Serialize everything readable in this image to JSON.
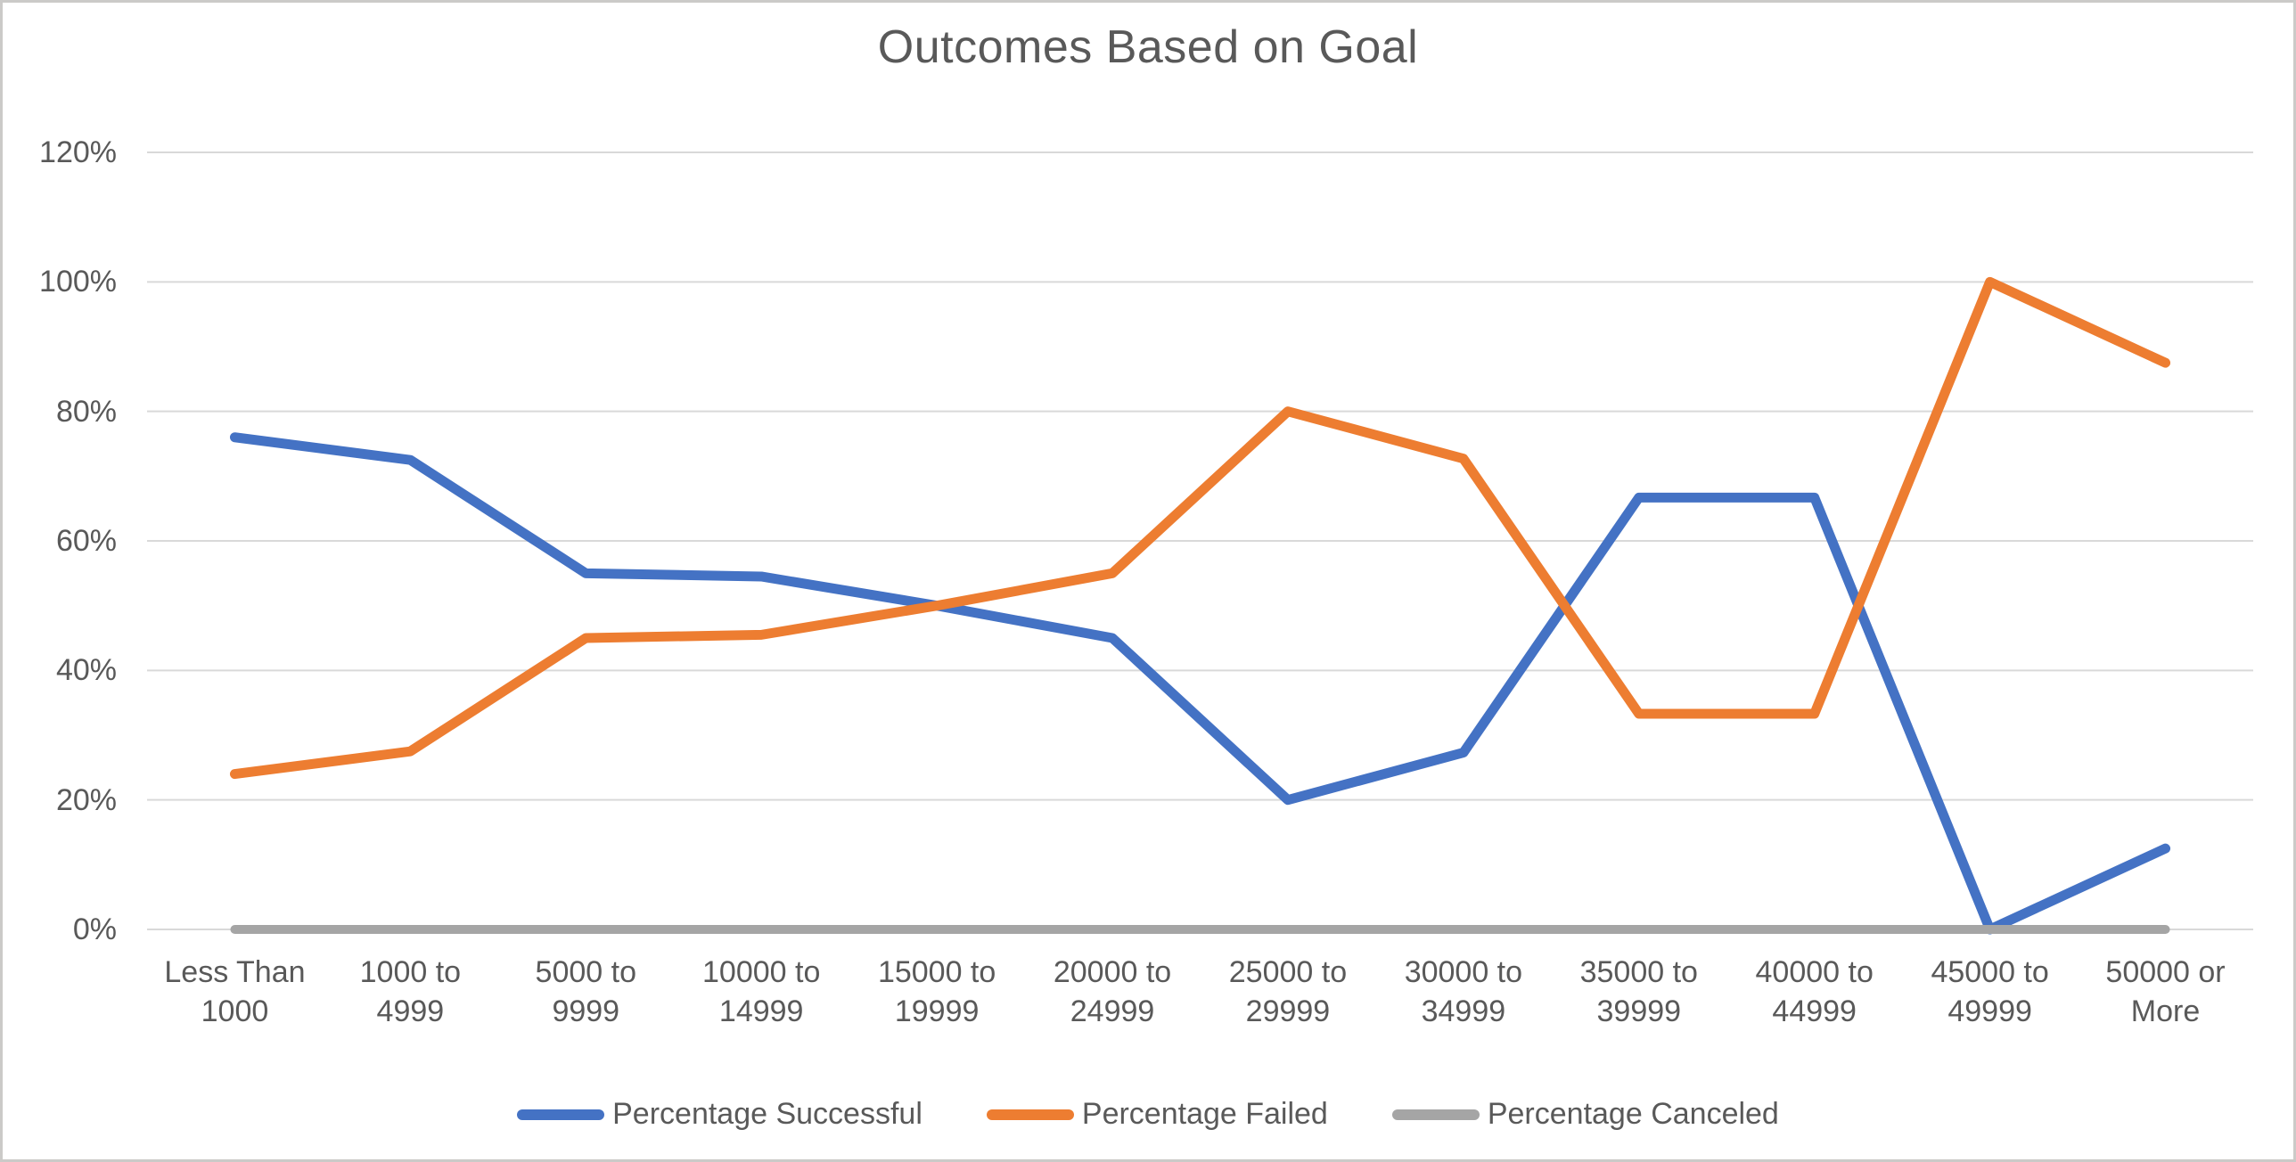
{
  "title": "Outcomes Based on Goal",
  "chart_data": {
    "type": "line",
    "title": "Outcomes Based on Goal",
    "categories": [
      "Less Than 1000",
      "1000 to 4999",
      "5000 to 9999",
      "10000 to 14999",
      "15000 to 19999",
      "20000 to 24999",
      "25000 to 29999",
      "30000 to 34999",
      "35000 to 39999",
      "40000 to 44999",
      "45000 to 49999",
      "50000 or More"
    ],
    "category_label_lines": [
      [
        "Less Than",
        "1000"
      ],
      [
        "1000 to",
        "4999"
      ],
      [
        "5000 to",
        "9999"
      ],
      [
        "10000 to",
        "14999"
      ],
      [
        "15000 to",
        "19999"
      ],
      [
        "20000 to",
        "24999"
      ],
      [
        "25000 to",
        "29999"
      ],
      [
        "30000 to",
        "34999"
      ],
      [
        "35000 to",
        "39999"
      ],
      [
        "40000 to",
        "44999"
      ],
      [
        "45000 to",
        "49999"
      ],
      [
        "50000 or",
        "More"
      ]
    ],
    "series": [
      {
        "name": "Percentage Successful",
        "color": "#4472C4",
        "values": [
          76,
          72.5,
          55,
          54.5,
          50,
          45,
          20,
          27.3,
          66.7,
          66.7,
          0,
          12.5
        ]
      },
      {
        "name": "Percentage Failed",
        "color": "#ED7D31",
        "values": [
          24,
          27.5,
          45,
          45.5,
          50,
          55,
          80,
          72.7,
          33.3,
          33.3,
          100,
          87.5
        ]
      },
      {
        "name": "Percentage Canceled",
        "color": "#A5A5A5",
        "values": [
          0,
          0,
          0,
          0,
          0,
          0,
          0,
          0,
          0,
          0,
          0,
          0
        ]
      }
    ],
    "xlabel": "",
    "ylabel": "",
    "ylim": [
      0,
      120
    ],
    "ytick_step": 20,
    "ytick_labels": [
      "0%",
      "20%",
      "40%",
      "60%",
      "80%",
      "100%",
      "120%"
    ],
    "grid": true,
    "legend_position": "bottom"
  },
  "colors": {
    "gridline": "#D9D9D9",
    "text": "#595959",
    "background": "#FFFFFF",
    "frame_border": "#CBCAC8"
  }
}
